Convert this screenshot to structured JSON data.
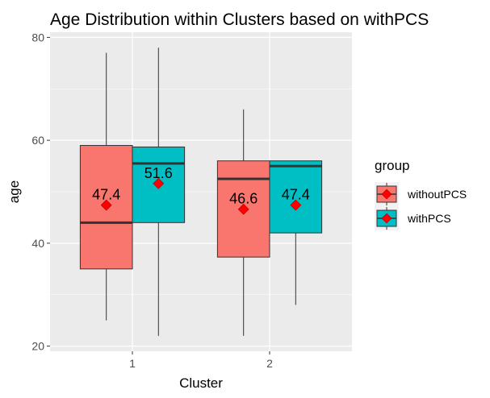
{
  "chart_data": {
    "type": "boxplot",
    "title": "Age Distribution within Clusters based on withPCS",
    "xlabel": "Cluster",
    "ylabel": "age",
    "categories": [
      "1",
      "2"
    ],
    "yticks": [
      20,
      40,
      60,
      80
    ],
    "ylim": [
      19,
      81
    ],
    "grid": true,
    "legend": {
      "title": "group",
      "position": "right"
    },
    "series": [
      {
        "name": "withoutPCS",
        "color": "#F8766D",
        "boxes": [
          {
            "category": "1",
            "min": 25,
            "q1": 35,
            "median": 44,
            "q3": 59,
            "max": 77,
            "mean": 47.4,
            "mean_label": "47.4"
          },
          {
            "category": "2",
            "min": 22,
            "q1": 37.3,
            "median": 52.5,
            "q3": 56,
            "max": 66,
            "mean": 46.6,
            "mean_label": "46.6"
          }
        ]
      },
      {
        "name": "withPCS",
        "color": "#00BFC4",
        "boxes": [
          {
            "category": "1",
            "min": 22,
            "q1": 44,
            "median": 55.5,
            "q3": 58.7,
            "max": 78,
            "mean": 51.6,
            "mean_label": "51.6"
          },
          {
            "category": "2",
            "min": 28,
            "q1": 42,
            "median": 55,
            "q3": 56,
            "max": 56,
            "mean": 47.4,
            "mean_label": "47.4"
          }
        ]
      }
    ],
    "mean_marker_color": "#FF0000"
  }
}
